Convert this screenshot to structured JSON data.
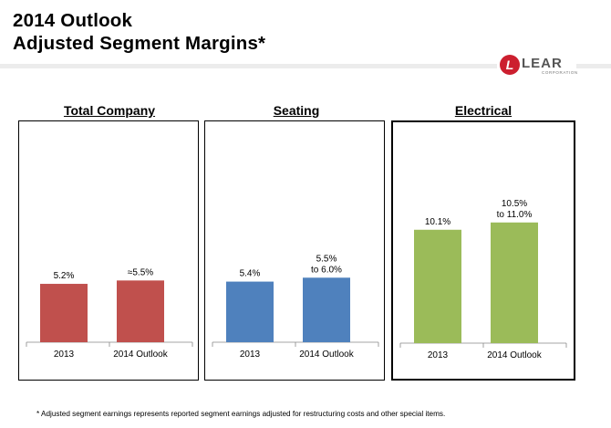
{
  "header": {
    "title_line1": "2014 Outlook",
    "title_line2": "Adjusted Segment Margins*",
    "logo_letter": "L",
    "logo_word": "LEAR",
    "logo_sub": "CORPORATION"
  },
  "colors": {
    "total_company": "#c0504d",
    "seating": "#4f81bd",
    "electrical": "#9bbb59"
  },
  "chart_data": [
    {
      "type": "bar",
      "title": "Total Company",
      "categories": [
        "2013",
        "2014 Outlook"
      ],
      "values": [
        5.2,
        5.5
      ],
      "data_labels": [
        [
          "5.2%"
        ],
        [
          "≈5.5%"
        ]
      ],
      "ylim": [
        0,
        12
      ]
    },
    {
      "type": "bar",
      "title": "Seating",
      "categories": [
        "2013",
        "2014 Outlook"
      ],
      "values": [
        5.4,
        5.75
      ],
      "data_labels": [
        [
          "5.4%"
        ],
        [
          "5.5%",
          "to 6.0%"
        ]
      ],
      "ylim": [
        0,
        12
      ]
    },
    {
      "type": "bar",
      "title": "Electrical",
      "categories": [
        "2013",
        "2014 Outlook"
      ],
      "values": [
        10.1,
        10.75
      ],
      "data_labels": [
        [
          "10.1%"
        ],
        [
          "10.5%",
          "to 11.0%"
        ]
      ],
      "ylim": [
        0,
        12
      ]
    }
  ],
  "footnote": "* Adjusted segment earnings represents reported segment earnings adjusted for restructuring costs and other special items."
}
